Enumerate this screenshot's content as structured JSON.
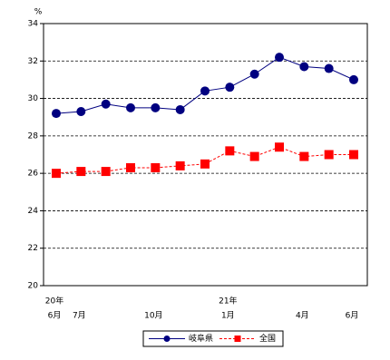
{
  "chart_data": {
    "type": "line",
    "y_unit": "%",
    "categories": [
      "6月",
      "7月",
      null,
      null,
      "10月",
      null,
      null,
      "1月",
      null,
      null,
      "4月",
      null,
      "6月"
    ],
    "year_labels": [
      "20年",
      null,
      null,
      null,
      null,
      null,
      null,
      "21年",
      null,
      null,
      null,
      null,
      null
    ],
    "series": [
      {
        "name": "岐阜県",
        "color": "#000080",
        "marker": "circle",
        "line_style": "solid",
        "values": [
          29.2,
          29.3,
          29.7,
          29.5,
          29.5,
          29.4,
          30.4,
          30.6,
          31.3,
          32.2,
          31.7,
          31.6,
          31.0
        ]
      },
      {
        "name": "全国",
        "color": "#ff0000",
        "marker": "square",
        "line_style": "dashed",
        "values": [
          26.0,
          26.1,
          26.1,
          26.3,
          26.3,
          26.4,
          26.5,
          27.2,
          26.9,
          27.4,
          26.9,
          27.0,
          27.0
        ]
      }
    ],
    "ylim": [
      20,
      34
    ],
    "yticks": [
      20,
      22,
      24,
      26,
      28,
      30,
      32,
      34
    ],
    "grid": true,
    "legend": "bottom"
  }
}
